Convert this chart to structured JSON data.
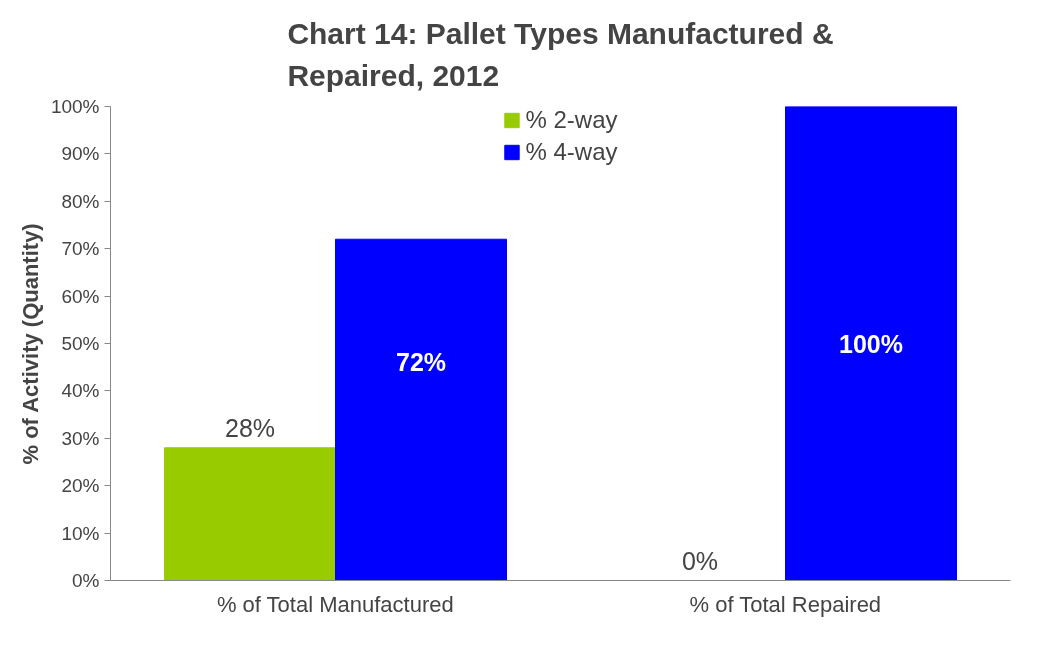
{
  "chart_data": {
    "type": "bar",
    "title": "Chart 14: Pallet Types Manufactured &\nRepaired, 2012",
    "ylabel": "% of Activity (Quantity)",
    "categories": [
      "% of Total Manufactured",
      "% of Total Repaired"
    ],
    "series": [
      {
        "name": "% 2-way",
        "color": "#99cc00",
        "values": [
          28,
          0
        ],
        "value_labels": [
          "28%",
          "0%"
        ]
      },
      {
        "name": "% 4-way",
        "color": "#0000ff",
        "values": [
          72,
          100
        ],
        "value_labels": [
          "72%",
          "100%"
        ]
      }
    ],
    "ylim": [
      0,
      100
    ],
    "yticks": [
      {
        "value": 0,
        "label": "0%"
      },
      {
        "value": 10,
        "label": "10%"
      },
      {
        "value": 20,
        "label": "20%"
      },
      {
        "value": 30,
        "label": "30%"
      },
      {
        "value": 40,
        "label": "40%"
      },
      {
        "value": 50,
        "label": "50%"
      },
      {
        "value": 60,
        "label": "60%"
      },
      {
        "value": 70,
        "label": "70%"
      },
      {
        "value": 80,
        "label": "80%"
      },
      {
        "value": 90,
        "label": "90%"
      },
      {
        "value": 100,
        "label": "100%"
      }
    ],
    "grid": false,
    "legend": "top"
  }
}
